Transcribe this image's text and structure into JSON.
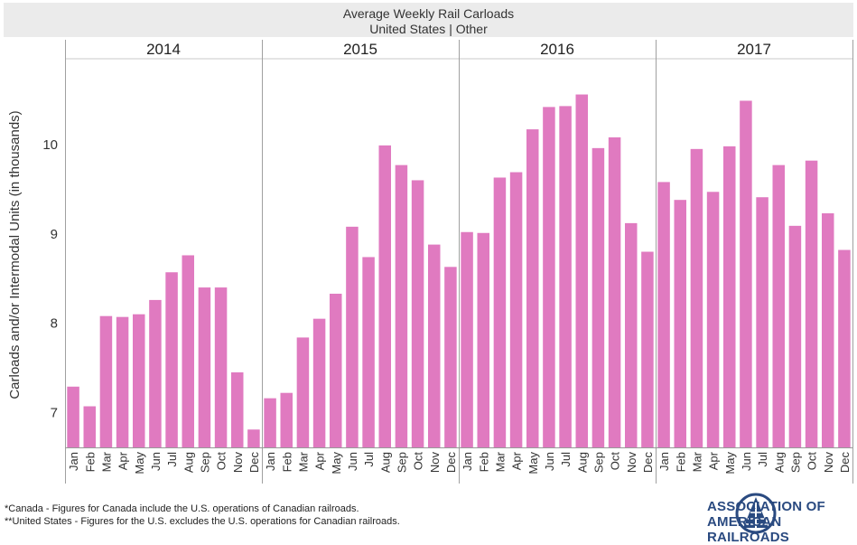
{
  "title": "Average Weekly Rail Carloads",
  "subtitle": "United States | Other",
  "footnotes": [
    "*Canada - Figures for Canada include the U.S. operations of Canadian railroads.",
    "**United States - Figures for the U.S. excludes the U.S. operations for Canadian railroads."
  ],
  "logo": {
    "line1": "ASSOCIATION OF",
    "line2": "AMERICAN RAILROADS",
    "icon": "aar-rail-shield-icon",
    "color": "#2a4a80"
  },
  "colors": {
    "bar": "#e07ac0",
    "panel_border": "#a0a0a0",
    "title_band": "#ebebeb"
  },
  "chart_data": {
    "type": "bar",
    "ylabel": "Carloads and/or Intermodal Units (in thousands)",
    "ylim": [
      6.6,
      10.95
    ],
    "yticks": [
      7,
      8,
      9,
      10
    ],
    "months": [
      "Jan",
      "Feb",
      "Mar",
      "Apr",
      "May",
      "Jun",
      "Jul",
      "Aug",
      "Sep",
      "Oct",
      "Nov",
      "Dec"
    ],
    "panels": [
      {
        "year": "2014",
        "values": [
          7.28,
          7.06,
          8.07,
          8.06,
          8.09,
          8.25,
          8.56,
          8.75,
          8.39,
          8.39,
          7.44,
          6.8
        ]
      },
      {
        "year": "2015",
        "values": [
          7.15,
          7.21,
          7.83,
          8.04,
          8.32,
          9.07,
          8.73,
          9.98,
          9.76,
          9.59,
          8.87,
          8.62
        ]
      },
      {
        "year": "2016",
        "values": [
          9.01,
          9.0,
          9.62,
          9.68,
          10.16,
          10.41,
          10.42,
          10.55,
          9.95,
          10.07,
          9.11,
          8.79
        ]
      },
      {
        "year": "2017",
        "values": [
          9.57,
          9.37,
          9.94,
          9.46,
          9.97,
          10.48,
          9.4,
          9.76,
          9.08,
          9.81,
          9.22,
          8.81
        ]
      }
    ]
  }
}
